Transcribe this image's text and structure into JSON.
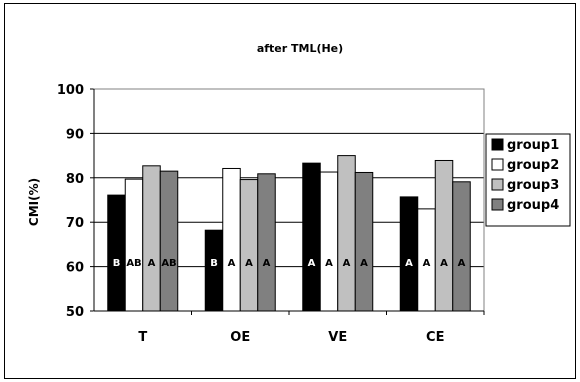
{
  "chart_data": {
    "type": "bar",
    "title": "after TML(He)",
    "xlabel": "",
    "ylabel": "CMI(%)",
    "ylim": [
      50,
      100
    ],
    "yticks": [
      50,
      60,
      70,
      80,
      90,
      100
    ],
    "grid": true,
    "legend_position": "right",
    "categories": [
      "T",
      "OE",
      "VE",
      "CE"
    ],
    "series": [
      {
        "name": "group1",
        "color": "#000000",
        "values": [
          76.1,
          68.2,
          83.3,
          75.7
        ],
        "letters": [
          "B",
          "B",
          "A",
          "A"
        ]
      },
      {
        "name": "group2",
        "color": "#ffffff",
        "values": [
          79.7,
          82.1,
          81.3,
          73.0
        ],
        "letters": [
          "AB",
          "A",
          "A",
          "A"
        ]
      },
      {
        "name": "group3",
        "color": "#c0c0c0",
        "values": [
          82.7,
          79.6,
          85.0,
          83.9
        ],
        "letters": [
          "A",
          "A",
          "A",
          "A"
        ]
      },
      {
        "name": "group4",
        "color": "#808080",
        "values": [
          81.5,
          80.9,
          81.2,
          79.1
        ],
        "letters": [
          "AB",
          "A",
          "A",
          "A"
        ]
      }
    ]
  }
}
